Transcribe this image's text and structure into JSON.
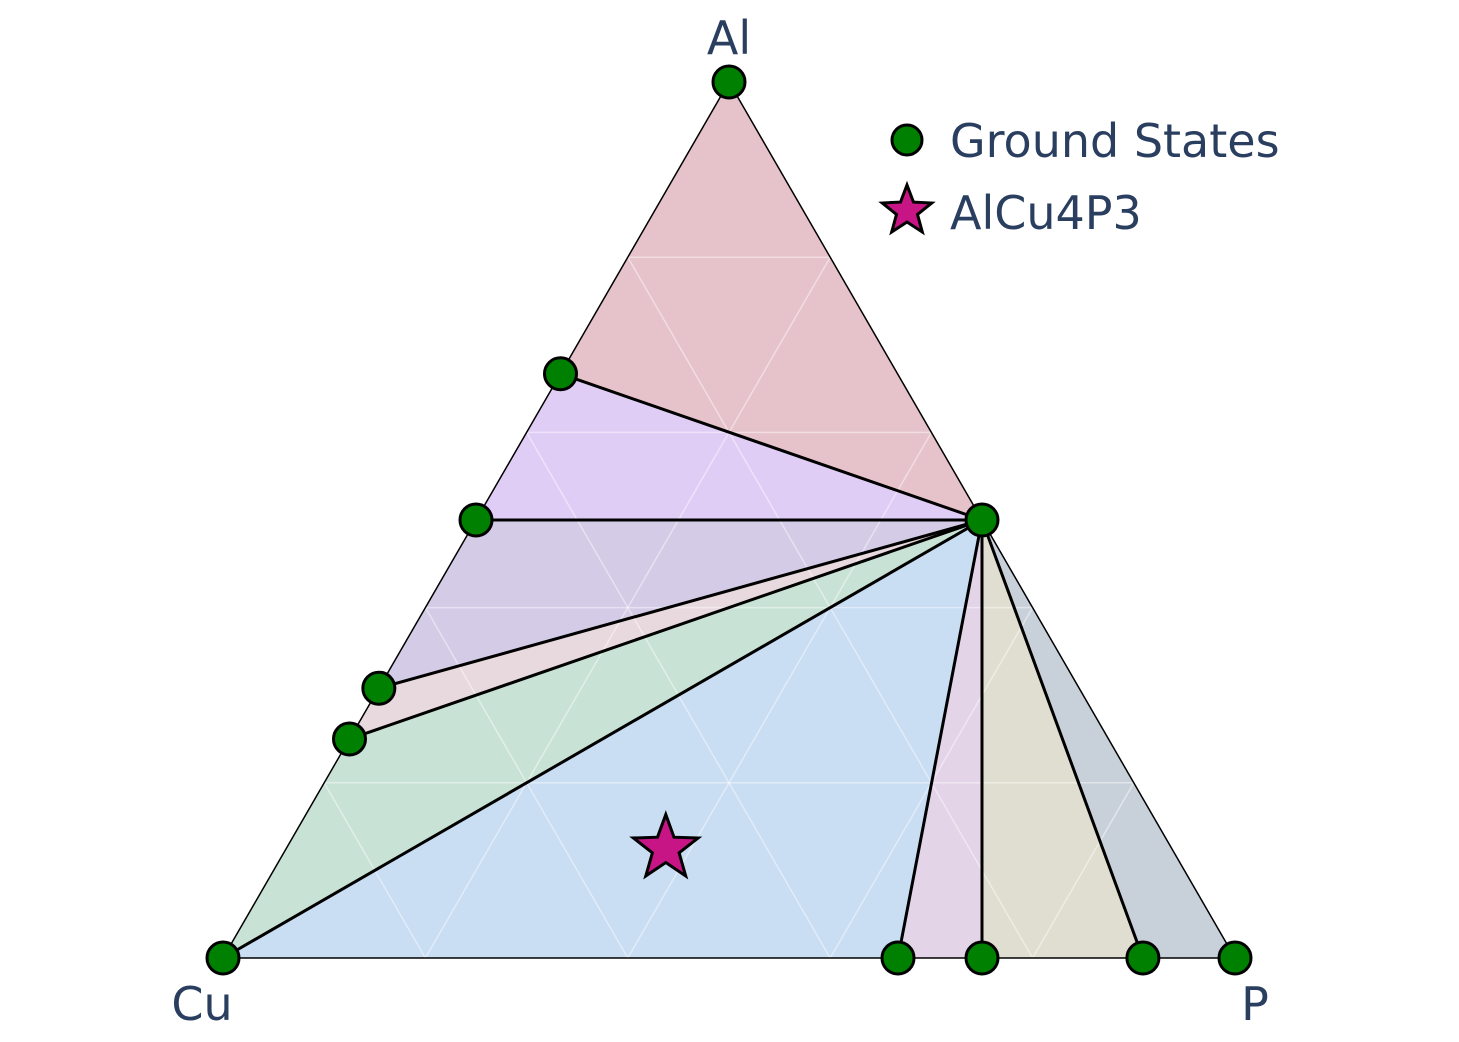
{
  "chart_data": {
    "type": "ternary-phase-diagram",
    "vertices": {
      "top": "Al",
      "left": "Cu",
      "right": "P"
    },
    "grid": true,
    "legend_placement": "top-right",
    "legend": [
      {
        "name": "Ground States",
        "marker": "circle",
        "color": "#008000"
      },
      {
        "name": "AlCu4P3",
        "marker": "star",
        "color": "#c71585"
      }
    ],
    "ground_states": [
      {
        "Al": 1.0,
        "Cu": 0.0,
        "P": 0.0
      },
      {
        "Al": 0.667,
        "Cu": 0.333,
        "P": 0.0
      },
      {
        "Al": 0.5,
        "Cu": 0.5,
        "P": 0.0
      },
      {
        "Al": 0.308,
        "Cu": 0.692,
        "P": 0.0
      },
      {
        "Al": 0.25,
        "Cu": 0.75,
        "P": 0.0
      },
      {
        "Al": 0.0,
        "Cu": 1.0,
        "P": 0.0
      },
      {
        "Al": 0.5,
        "Cu": 0.0,
        "P": 0.5
      },
      {
        "Al": 0.0,
        "Cu": 0.333,
        "P": 0.667
      },
      {
        "Al": 0.0,
        "Cu": 0.25,
        "P": 0.75
      },
      {
        "Al": 0.0,
        "Cu": 0.091,
        "P": 0.909
      },
      {
        "Al": 0.0,
        "Cu": 0.0,
        "P": 1.0
      }
    ],
    "facets": [
      {
        "points": [
          0,
          1,
          6
        ],
        "color": "#e6c2cb"
      },
      {
        "points": [
          1,
          2,
          6
        ],
        "color": "#e0cdf6"
      },
      {
        "points": [
          2,
          3,
          6
        ],
        "color": "#d4cbe6"
      },
      {
        "points": [
          3,
          4,
          6
        ],
        "color": "#e8d9de"
      },
      {
        "points": [
          4,
          5,
          6
        ],
        "color": "#c9e2d6"
      },
      {
        "points": [
          5,
          7,
          6
        ],
        "color": "#c9ddf3"
      },
      {
        "points": [
          7,
          8,
          6
        ],
        "color": "#e3d4e8"
      },
      {
        "points": [
          8,
          9,
          6
        ],
        "color": "#e0ded0"
      },
      {
        "points": [
          9,
          10,
          6
        ],
        "color": "#c8d1da"
      }
    ],
    "tie_lines": [
      [
        1,
        6
      ],
      [
        2,
        6
      ],
      [
        3,
        6
      ],
      [
        4,
        6
      ],
      [
        5,
        6
      ],
      [
        7,
        6
      ],
      [
        8,
        6
      ],
      [
        9,
        6
      ]
    ],
    "compound": {
      "name": "AlCu4P3",
      "Al": 0.125,
      "Cu": 0.5,
      "P": 0.375
    }
  }
}
